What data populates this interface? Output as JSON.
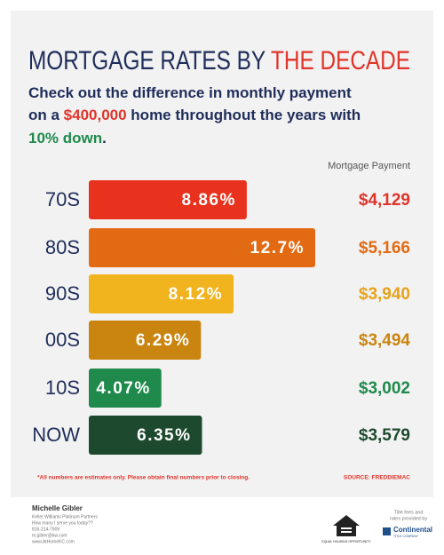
{
  "chart_data": {
    "type": "bar",
    "title_parts": [
      "MORTGAGE RATES BY ",
      "THE DECADE"
    ],
    "subtitle_lines": [
      [
        "Check out the difference in monthly payment"
      ],
      [
        "on a ",
        "$400,000",
        " home throughout the years with"
      ],
      [
        "10% down",
        "."
      ]
    ],
    "categories": [
      "70S",
      "80S",
      "90S",
      "00S",
      "10S",
      "NOW"
    ],
    "values": [
      8.86,
      12.7,
      8.12,
      6.29,
      4.07,
      6.35
    ],
    "value_labels": [
      "8.86%",
      "12.7%",
      "8.12%",
      "6.29%",
      "4.07%",
      "6.35%"
    ],
    "colors": [
      "#e8321e",
      "#e26a12",
      "#f1b31e",
      "#c9850f",
      "#1f8a4c",
      "#1d4a2e"
    ],
    "payment_header": "Mortgage Payment",
    "payments": [
      4129,
      5166,
      3940,
      3494,
      3002,
      3579
    ],
    "payment_labels": [
      "$4,129",
      "$5,166",
      "$3,940",
      "$3,494",
      "$3,002",
      "$3,579"
    ],
    "payment_colors": [
      "#e0342a",
      "#e26a12",
      "#e6a21a",
      "#c9850f",
      "#1f8a4c",
      "#1d4a2e"
    ],
    "note": "*All numbers are estimates only. Please obtain final numbers prior to closing.",
    "source": "SOURCE: FREDDIEMAC"
  },
  "footer": {
    "name": "Michelle Gibler",
    "lines": [
      "Keller Williams Platinum Partners",
      "How many I serve you today??",
      "816-214-7909",
      "m.gibler@kw.com",
      "www.AtHomeKC.com"
    ],
    "housing": "EQUAL HOUSING OPPORTUNITY",
    "provided": [
      "Title fees and",
      "rates provided by"
    ],
    "company": "Continental",
    "company_sub": "TITLE COMPANY"
  }
}
